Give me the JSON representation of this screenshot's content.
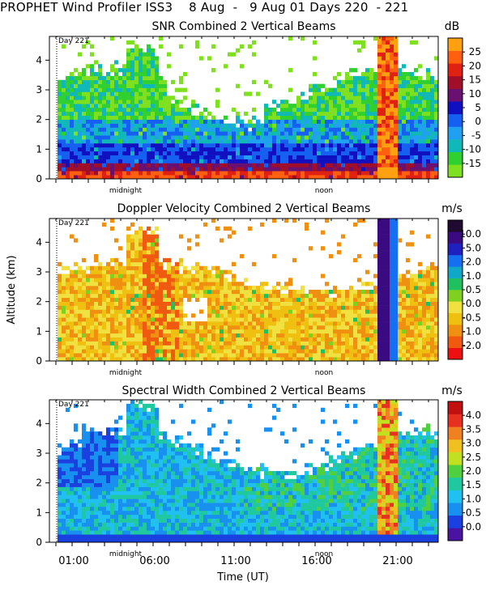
{
  "figure": {
    "title": "PROPHET Wind Profiler ISS3    8 Aug  -   9 Aug 01 Days 220  - 221",
    "ylabel": "Altitude (km)",
    "xlabel": "Time (UT)",
    "x_ticks": [
      "01:00",
      "06:00",
      "11:00",
      "16:00",
      "21:00"
    ],
    "midnight_label": "midnight",
    "noon_label": "noon",
    "day_label": "Day 221"
  },
  "chart_data": [
    {
      "type": "heatmap",
      "title": "SNR Combined 2 Vertical Beams",
      "unit": "dB",
      "y_ticks": [
        "0",
        "1",
        "2",
        "3",
        "4"
      ],
      "ylim": [
        0,
        4.8
      ],
      "colorbar_labels": [
        "-15",
        "-10",
        "-5",
        "0",
        "5",
        "10",
        "15",
        "20",
        "25"
      ],
      "colorbar_colors": [
        "#7fe020",
        "#30d030",
        "#10b8b8",
        "#20a0f0",
        "#1560f0",
        "#1010c0",
        "#6a1070",
        "#a00e2a",
        "#e02010",
        "#ff6010",
        "#ffa010"
      ],
      "overlay_labels": [
        "midnight",
        "noon",
        "Day 221"
      ]
    },
    {
      "type": "heatmap",
      "title": "Doppler Velocity Combined 2 Vertical Beams",
      "unit": "m/s",
      "y_ticks": [
        "0",
        "1",
        "2",
        "3",
        "4"
      ],
      "ylim": [
        0,
        4.8
      ],
      "colorbar_labels": [
        "-2.0",
        "-1.0",
        "-0.5",
        "0.0",
        "0.5",
        "1.0",
        "2.0",
        "5.0",
        "10.0"
      ],
      "colorbar_colors": [
        "#ee1010",
        "#f05a10",
        "#f09010",
        "#f0c010",
        "#f0e040",
        "#80d020",
        "#20c060",
        "#10a8c8",
        "#1470f0",
        "#2020c0",
        "#3a0a80",
        "#200a30"
      ],
      "overlay_labels": [
        "midnight",
        "noon",
        "Day 221"
      ]
    },
    {
      "type": "heatmap",
      "title": "Spectral Width Combined 2 Vertical Beams",
      "unit": "m/s",
      "y_ticks": [
        "0",
        "1",
        "2",
        "3",
        "4"
      ],
      "ylim": [
        0,
        4.8
      ],
      "colorbar_labels": [
        "0.0",
        "0.5",
        "1.0",
        "1.5",
        "2.0",
        "2.5",
        "3.0",
        "3.5",
        "4.0"
      ],
      "colorbar_colors": [
        "#4a14a0",
        "#1a40e0",
        "#1890f0",
        "#20c0f0",
        "#20c8a0",
        "#50d040",
        "#c0e020",
        "#f0c020",
        "#f08020",
        "#e83020",
        "#c01010"
      ],
      "overlay_labels": [
        "midnight",
        "noon",
        "Day 221"
      ]
    }
  ]
}
